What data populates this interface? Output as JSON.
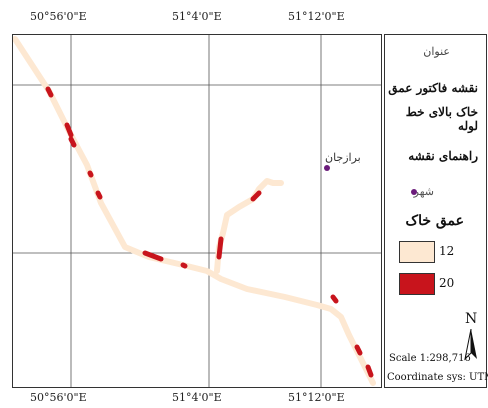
{
  "grid": {
    "lon_labels": [
      "50°56'0\"E",
      "51°4'0\"E",
      "51°12'0\"E"
    ]
  },
  "map": {
    "city_name": "برازجان"
  },
  "legend": {
    "title_small": "عنوان",
    "title_line1": "نقشه فاکتور عمق",
    "title_line2": "خاک بالای خط لوله",
    "guide_heading": "راهنمای نقشه",
    "city_item": "شهر",
    "depth_heading": "عمق خاک",
    "classes": [
      {
        "label": "12",
        "color": "#fde8d2"
      },
      {
        "label": "20",
        "color": "#c8141c"
      }
    ],
    "north_letter": "N",
    "scale_text": "Scale 1:298,716",
    "coord_sys": "Coordinate sys: UTM"
  },
  "colors": {
    "pipeline_light": "#fde8d2",
    "pipeline_dark": "#c8141c",
    "city_symbol": "#6a1b7a"
  }
}
